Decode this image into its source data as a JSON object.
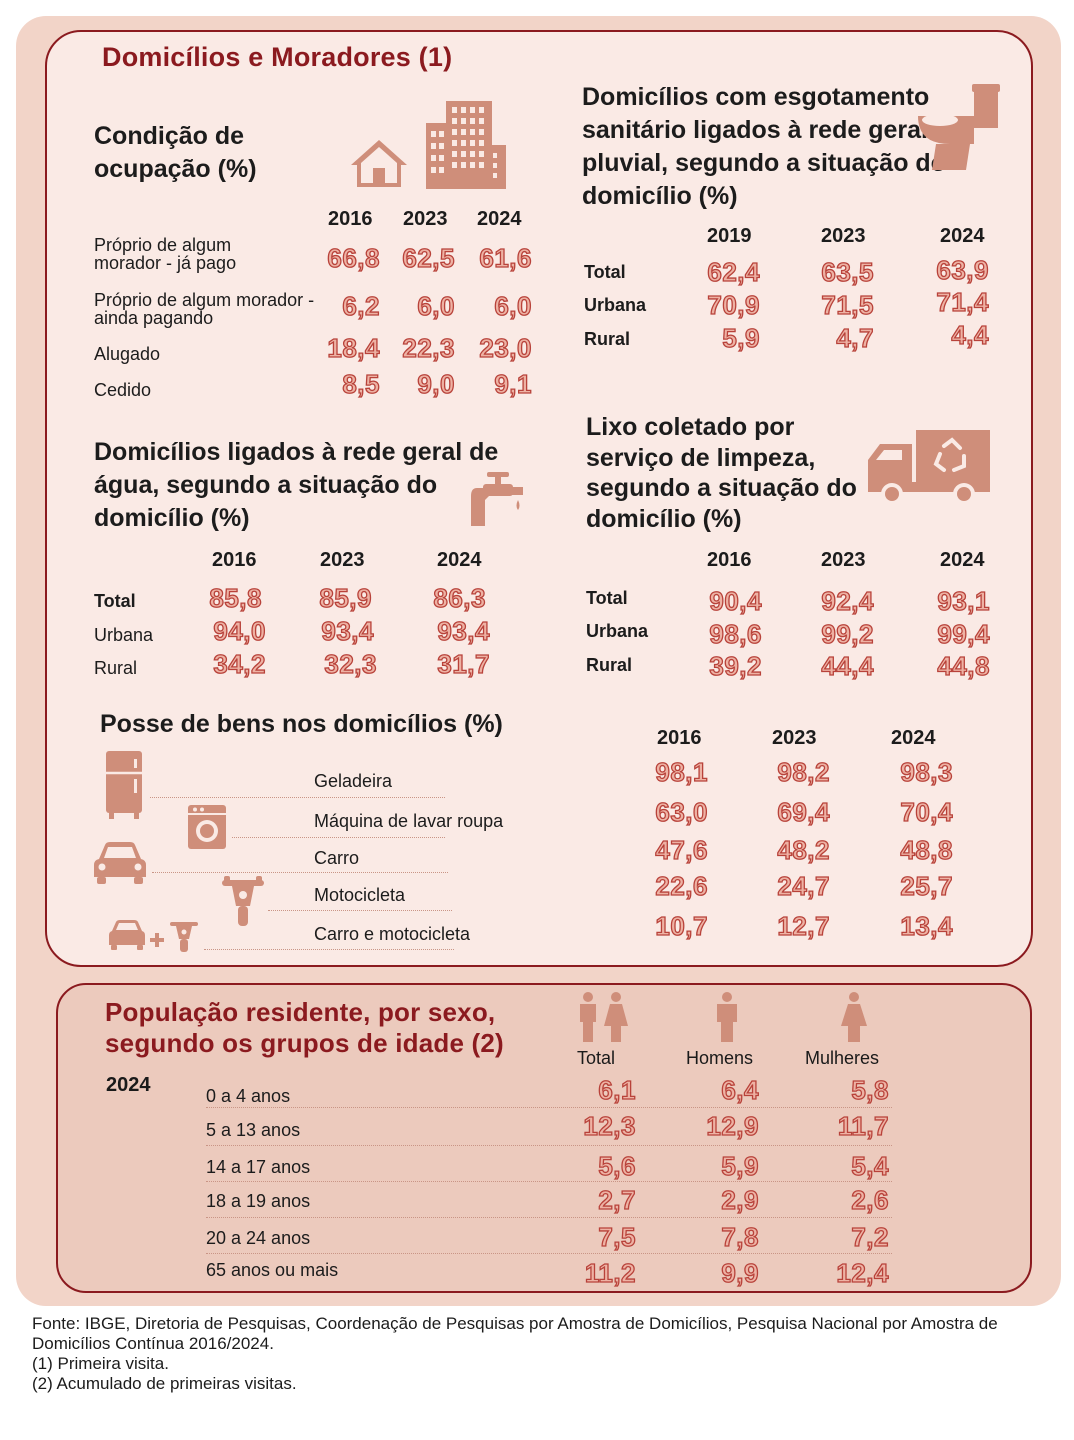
{
  "title": "Domicílios e Moradores (1)",
  "ocupacao": {
    "title": "Condição de ocupação (%)",
    "years": [
      "2016",
      "2023",
      "2024"
    ],
    "rows": [
      {
        "label": "Próprio de algum morador - já pago",
        "values": [
          "66,8",
          "62,5",
          "61,6"
        ]
      },
      {
        "label": "Próprio de algum morador - ainda pagando",
        "values": [
          "6,2",
          "6,0",
          "6,0"
        ]
      },
      {
        "label": "Alugado",
        "values": [
          "18,4",
          "22,3",
          "23,0"
        ]
      },
      {
        "label": "Cedido",
        "values": [
          "8,5",
          "9,0",
          "9,1"
        ]
      }
    ]
  },
  "esgoto": {
    "title": "Domicílios com esgotamento sanitário ligados à rede geral ou pluvial, segundo a situação do domicílio (%)",
    "years": [
      "2019",
      "2023",
      "2024"
    ],
    "rows": [
      {
        "label": "Total",
        "values": [
          "62,4",
          "63,5",
          "63,9"
        ]
      },
      {
        "label": "Urbana",
        "values": [
          "70,9",
          "71,5",
          "71,4"
        ]
      },
      {
        "label": "Rural",
        "values": [
          "5,9",
          "4,7",
          "4,4"
        ]
      }
    ]
  },
  "agua": {
    "title": "Domicílios ligados à rede geral de água, segundo a situação do domicílio (%)",
    "years": [
      "2016",
      "2023",
      "2024"
    ],
    "rows": [
      {
        "label": "Total",
        "values": [
          "85,8",
          "85,9",
          "86,3"
        ]
      },
      {
        "label": "Urbana",
        "values": [
          "94,0",
          "93,4",
          "93,4"
        ]
      },
      {
        "label": "Rural",
        "values": [
          "34,2",
          "32,3",
          "31,7"
        ]
      }
    ]
  },
  "lixo": {
    "title": "Lixo coletado por serviço de limpeza, segundo a situação do domicílio (%)",
    "years": [
      "2016",
      "2023",
      "2024"
    ],
    "rows": [
      {
        "label": "Total",
        "values": [
          "90,4",
          "92,4",
          "93,1"
        ]
      },
      {
        "label": "Urbana",
        "values": [
          "98,6",
          "99,2",
          "99,4"
        ]
      },
      {
        "label": "Rural",
        "values": [
          "39,2",
          "44,4",
          "44,8"
        ]
      }
    ]
  },
  "bens": {
    "title": "Posse de bens nos domicílios (%)",
    "years": [
      "2016",
      "2023",
      "2024"
    ],
    "rows": [
      {
        "label": "Geladeira",
        "icon": "refrigerator-icon",
        "values": [
          "98,1",
          "98,2",
          "98,3"
        ]
      },
      {
        "label": "Máquina de lavar roupa",
        "icon": "washing-machine-icon",
        "values": [
          "63,0",
          "69,4",
          "70,4"
        ]
      },
      {
        "label": "Carro",
        "icon": "car-icon",
        "values": [
          "47,6",
          "48,2",
          "48,8"
        ]
      },
      {
        "label": "Motocicleta",
        "icon": "motorcycle-icon",
        "values": [
          "22,6",
          "24,7",
          "25,7"
        ]
      },
      {
        "label": "Carro e motocicleta",
        "icon": "car-and-motorcycle-icon",
        "values": [
          "10,7",
          "12,7",
          "13,4"
        ]
      }
    ]
  },
  "populacao": {
    "title": "População residente, por sexo, segundo os grupos de idade (2)",
    "year": "2024",
    "columns": [
      "Total",
      "Homens",
      "Mulheres"
    ],
    "rows": [
      {
        "label": "0 a 4 anos",
        "values": [
          "6,1",
          "6,4",
          "5,8"
        ]
      },
      {
        "label": "5 a 13 anos",
        "values": [
          "12,3",
          "12,9",
          "11,7"
        ]
      },
      {
        "label": "14 a 17 anos",
        "values": [
          "5,6",
          "5,9",
          "5,4"
        ]
      },
      {
        "label": "18 a 19 anos",
        "values": [
          "2,7",
          "2,9",
          "2,6"
        ]
      },
      {
        "label": "20 a 24 anos",
        "values": [
          "7,5",
          "7,8",
          "7,2"
        ]
      },
      {
        "label": "65 anos ou mais",
        "values": [
          "11,2",
          "9,9",
          "12,4"
        ]
      }
    ]
  },
  "footer": {
    "source": "Fonte: IBGE, Diretoria de Pesquisas, Coordenação de Pesquisas por Amostra de Domicílios, Pesquisa Nacional por Amostra de Domicílios Contínua 2016/2024.",
    "note1": "(1) Primeira visita.",
    "note2": "(2) Acumulado de primeiras visitas."
  },
  "colors": {
    "maroon": "#8b1a1f",
    "value_fill": "#eeb2a4",
    "value_stroke": "#b8423a",
    "icon": "#cf8e7a",
    "card_bg": "#faeae5",
    "outer_bg": "#f2d4c8"
  }
}
